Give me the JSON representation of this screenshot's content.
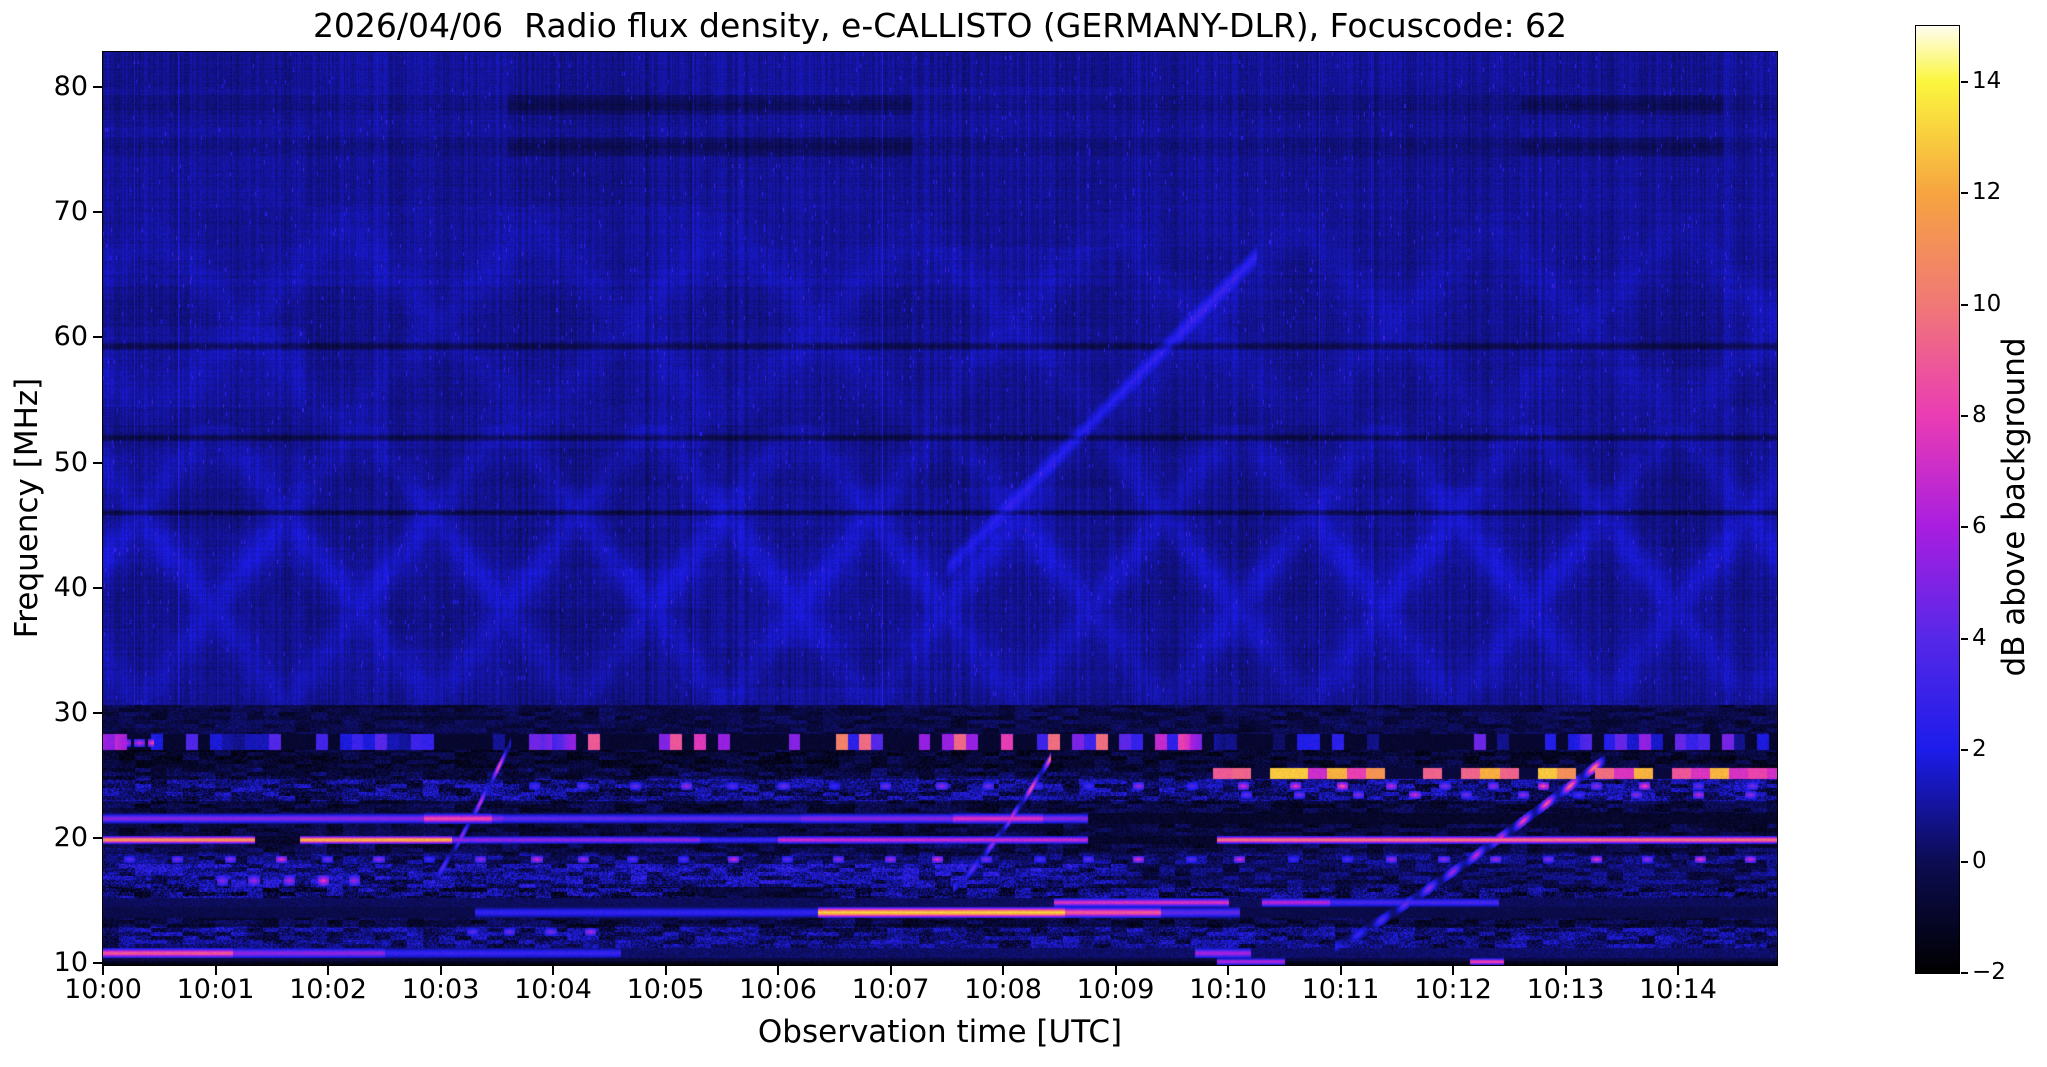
{
  "title": "2026/04/06  Radio flux density, e-CALLISTO (GERMANY-DLR), Focuscode: 62",
  "date": "2026/04/06",
  "station": "GERMANY-DLR",
  "focuscode": "62",
  "axes": {
    "xlabel": "Observation time [UTC]",
    "ylabel": "Frequency [MHz]",
    "x_ticks": [
      "10:00",
      "10:01",
      "10:02",
      "10:03",
      "10:04",
      "10:05",
      "10:06",
      "10:07",
      "10:08",
      "10:09",
      "10:10",
      "10:11",
      "10:12",
      "10:13",
      "10:14"
    ],
    "y_ticks": [
      10,
      20,
      30,
      40,
      50,
      60,
      70,
      80
    ]
  },
  "colorbar": {
    "label": "dB above background",
    "ticks": [
      "14",
      "12",
      "10",
      "8",
      "6",
      "4",
      "2",
      "0",
      "−2"
    ],
    "tick_values": [
      14,
      12,
      10,
      8,
      6,
      4,
      2,
      0,
      -2
    ],
    "vmin": -2,
    "vmax": 15,
    "stops": [
      [
        -2,
        "#000000"
      ],
      [
        0,
        "#0c0c52"
      ],
      [
        2,
        "#1c1cea"
      ],
      [
        4,
        "#5628e8"
      ],
      [
        6,
        "#a81ee0"
      ],
      [
        8,
        "#ea3cb4"
      ],
      [
        10,
        "#f07876"
      ],
      [
        12,
        "#f6a440"
      ],
      [
        14,
        "#fbf63e"
      ],
      [
        15,
        "#fffdf0"
      ]
    ]
  },
  "chart_data": {
    "type": "heatmap",
    "title": "2026/04/06  Radio flux density, e-CALLISTO (GERMANY-DLR), Focuscode: 62",
    "x_start_utc": "10:00",
    "x_end_utc": "10:15",
    "duration_min": 14.88,
    "freq_mhz_min": 9.86,
    "freq_mhz_max": 82.8,
    "value_unit": "dB above background",
    "value_range": [
      -2,
      15
    ],
    "background_db": 0.85,
    "quiet_region_above_mhz": 30.6,
    "bands": [
      {
        "f": [
          28.3,
          30.6
        ],
        "style": "mottle",
        "base": -0.35,
        "amp": 0.7
      },
      {
        "f": [
          27.0,
          28.3
        ],
        "style": "dash",
        "t": [
          0,
          14.88
        ],
        "period": 0.105,
        "duty": 0.55,
        "vlo": -0.8,
        "v": [
          2.5,
          10.5
        ],
        "env": [
          [
            0,
            0.95
          ],
          [
            0.45,
            0.45
          ],
          [
            3.9,
            0.5
          ],
          [
            4.3,
            1.0
          ],
          [
            9.6,
            1.0
          ],
          [
            10.0,
            0.28
          ],
          [
            11.3,
            0.3
          ],
          [
            11.6,
            0.6
          ],
          [
            12.9,
            0.35
          ],
          [
            13.4,
            0.6
          ],
          [
            14.88,
            0.45
          ]
        ]
      },
      {
        "f": [
          25.6,
          27.0
        ],
        "style": "mottle",
        "base": -0.75,
        "amp": 0.85
      },
      {
        "f": [
          24.7,
          25.6
        ],
        "style": "dash",
        "t": [
          9.85,
          14.88
        ],
        "period": 0.17,
        "duty": 0.78,
        "vlo": -0.5,
        "v": [
          7,
          13
        ],
        "env": [
          [
            9.85,
            1
          ],
          [
            14.88,
            1
          ]
        ],
        "else": {
          "base": -0.35,
          "amp": 1.0
        }
      },
      {
        "f": [
          23.0,
          24.7
        ],
        "style": "mottle",
        "base": 0.5,
        "amp": 1.5
      },
      {
        "f": [
          22.0,
          23.0
        ],
        "style": "mottle",
        "base": -0.5,
        "amp": 0.9
      },
      {
        "f": [
          21.1,
          22.0
        ],
        "style": "segments",
        "dark": -0.9,
        "nz": 1.3,
        "segs": [
          [
            0,
            3.55,
            5.2
          ],
          [
            3.55,
            6.2,
            4.2
          ],
          [
            6.2,
            8.75,
            5.2
          ],
          [
            2.85,
            3.45,
            8.5
          ],
          [
            7.55,
            8.35,
            7.5
          ]
        ]
      },
      {
        "f": [
          20.2,
          21.1
        ],
        "style": "mottle",
        "base": -0.55,
        "amp": 0.8
      },
      {
        "f": [
          19.5,
          20.2
        ],
        "style": "segments",
        "dark": -0.9,
        "nz": 1.8,
        "segs": [
          [
            0,
            1.35,
            11.5
          ],
          [
            1.75,
            3.1,
            12.5
          ],
          [
            3.1,
            5.3,
            5.5
          ],
          [
            5.3,
            6.0,
            3.2
          ],
          [
            6.0,
            8.75,
            7.0
          ],
          [
            9.9,
            14.88,
            10.0
          ]
        ]
      },
      {
        "f": [
          18.7,
          19.5
        ],
        "style": "mottle",
        "base": -0.3,
        "amp": 0.9
      },
      {
        "f": [
          17.9,
          18.7
        ],
        "style": "mottle",
        "base": 0.2,
        "amp": 1.1
      },
      {
        "f": [
          16.1,
          17.9
        ],
        "style": "mottle",
        "base": 0.9,
        "amp": 1.6,
        "env": [
          [
            0,
            1
          ],
          [
            8.8,
            1
          ],
          [
            9.2,
            0.6
          ],
          [
            14.88,
            0.65
          ]
        ]
      },
      {
        "f": [
          15.2,
          16.1
        ],
        "style": "mottle",
        "base": 0.15,
        "amp": 1.7,
        "env": [
          [
            0,
            1
          ],
          [
            5.1,
            1
          ],
          [
            5.4,
            0.4
          ],
          [
            6.3,
            0.4
          ],
          [
            6.6,
            1
          ],
          [
            14.88,
            0.9
          ]
        ]
      },
      {
        "f": [
          14.5,
          15.2
        ],
        "style": "segments",
        "dark": 0.1,
        "nz": 1.2,
        "segs": [
          [
            8.45,
            10.0,
            7.5
          ],
          [
            10.3,
            10.9,
            6.5
          ],
          [
            10.9,
            12.4,
            3.5
          ]
        ]
      },
      {
        "f": [
          13.6,
          14.5
        ],
        "style": "segments",
        "dark": -0.2,
        "nz": 1.0,
        "segs": [
          [
            3.3,
            6.35,
            2.8
          ],
          [
            6.35,
            8.55,
            13.2
          ],
          [
            8.55,
            9.4,
            9.0
          ],
          [
            9.4,
            10.1,
            4.2
          ]
        ]
      },
      {
        "f": [
          12.9,
          13.6
        ],
        "style": "mottle",
        "base": -0.45,
        "amp": 0.9
      },
      {
        "f": [
          12.1,
          12.9
        ],
        "style": "mottle",
        "base": 0.45,
        "amp": 1.4
      },
      {
        "f": [
          11.2,
          12.1
        ],
        "style": "mottle",
        "base": 0.45,
        "amp": 1.4
      },
      {
        "f": [
          10.4,
          11.2
        ],
        "style": "segments",
        "dark": 0.3,
        "nz": 1.4,
        "segs": [
          [
            0,
            1.15,
            9.0
          ],
          [
            1.15,
            2.5,
            5.5
          ],
          [
            2.5,
            4.6,
            3.0
          ],
          [
            9.7,
            10.2,
            6.0
          ]
        ]
      },
      {
        "f": [
          9.8,
          10.4
        ],
        "style": "segments",
        "dark": -0.4,
        "nz": 1.0,
        "segs": [
          [
            9.9,
            10.5,
            7.0
          ],
          [
            12.15,
            12.45,
            9.0
          ]
        ]
      }
    ],
    "dot_rows": [
      {
        "f": 24.15,
        "r": 0.33,
        "t": [
          3.6,
          14.88
        ],
        "spacing": 0.45,
        "v": [
          4,
          8
        ],
        "env": [
          [
            3.6,
            0.8
          ],
          [
            9.8,
            0.85
          ],
          [
            10.05,
            1.3
          ],
          [
            14.88,
            1.2
          ]
        ]
      },
      {
        "f": 23.45,
        "r": 0.3,
        "t": [
          9.9,
          14.88
        ],
        "spacing": 0.5,
        "v": [
          4,
          8
        ]
      },
      {
        "f": 18.3,
        "r": 0.3,
        "t": [
          0,
          14.88
        ],
        "spacing": 0.45,
        "v": [
          3.5,
          8.5
        ]
      },
      {
        "f": 16.6,
        "r": 0.45,
        "t": [
          0.9,
          2.3
        ],
        "spacing": 0.3,
        "v": [
          5,
          8.5
        ]
      },
      {
        "f": 12.5,
        "r": 0.3,
        "t": [
          3.1,
          4.6
        ],
        "spacing": 0.35,
        "v": [
          4,
          7
        ]
      },
      {
        "f": 27.6,
        "r": 0.3,
        "t": [
          0.02,
          0.45
        ],
        "spacing": 0.12,
        "v": [
          6,
          9.5
        ]
      }
    ],
    "sweeps": [
      {
        "t": [
          2.92,
          3.62
        ],
        "f": [
          16.5,
          27.6
        ],
        "w": 0.4,
        "v": [
          3.5,
          10.5
        ],
        "curve": 1.15,
        "bead": 38
      },
      {
        "t": [
          7.55,
          8.42
        ],
        "f": [
          16.0,
          26.4
        ],
        "w": 0.4,
        "v": [
          3.0,
          11.5
        ],
        "curve": 1.2,
        "bead": 36
      },
      {
        "t": [
          10.95,
          13.35
        ],
        "f": [
          11.3,
          26.3
        ],
        "w": 0.45,
        "v": [
          2.5,
          11.5
        ],
        "curve": 1.1,
        "bead": 30
      },
      {
        "t": [
          7.5,
          10.25
        ],
        "f": [
          41.5,
          66.5
        ],
        "w": 1.0,
        "v": [
          1.1,
          1.9
        ],
        "curve": 1.0,
        "bead": 0,
        "additive": true
      }
    ],
    "chevrons": [
      {
        "f": [
          30.6,
          53
        ],
        "amp": 0.55,
        "periodT": 1.3,
        "slope": 0.085
      },
      {
        "f": [
          53,
          70
        ],
        "amp": 0.3,
        "periodT": 1.7,
        "slope": 0.105
      }
    ],
    "dark_rows": [
      {
        "f": 46.0,
        "w": 0.25,
        "d": 1.2
      },
      {
        "f": 52.0,
        "w": 0.25,
        "d": 1.2
      },
      {
        "f": 59.3,
        "w": 0.3,
        "d": 1.1
      },
      {
        "f": 75.2,
        "w": 0.8,
        "d": 0.85,
        "blocky": 1.8
      },
      {
        "f": 78.6,
        "w": 0.8,
        "d": 0.95,
        "blocky": 1.8
      },
      {
        "f": 9.95,
        "w": 0.2,
        "d": 1.3
      }
    ]
  }
}
